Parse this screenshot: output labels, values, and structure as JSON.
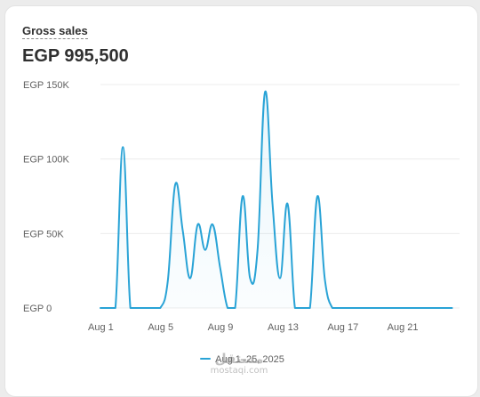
{
  "card": {
    "title": "Gross sales",
    "total": "EGP 995,500"
  },
  "legend": {
    "label": "Aug 1–25, 2025",
    "color": "#29a3d6"
  },
  "watermark": {
    "logo": "مستقل",
    "text": "mostaqi.com"
  },
  "chart_data": {
    "type": "line",
    "title": "",
    "xlabel": "",
    "ylabel": "",
    "ylim": [
      0,
      150000
    ],
    "y_ticks": [
      {
        "value": 0,
        "label": "EGP 0"
      },
      {
        "value": 50000,
        "label": "EGP 50K"
      },
      {
        "value": 100000,
        "label": "EGP 100K"
      },
      {
        "value": 150000,
        "label": "EGP 150K"
      }
    ],
    "x_ticks": [
      {
        "x": 1,
        "label": "Aug 1"
      },
      {
        "x": 5,
        "label": "Aug 5"
      },
      {
        "x": 9,
        "label": "Aug 9"
      },
      {
        "x": 13,
        "label": "Aug 13"
      },
      {
        "x": 17,
        "label": "Aug 17"
      },
      {
        "x": 21,
        "label": "Aug 21"
      }
    ],
    "grid": true,
    "legend_position": "bottom",
    "series": [
      {
        "name": "Aug 1–25, 2025",
        "color": "#29a3d6",
        "x": [
          1,
          1.5,
          2,
          2.5,
          3,
          3.5,
          4,
          4.5,
          5,
          5.5,
          6,
          6.5,
          7,
          7.5,
          8,
          8.5,
          9,
          9.5,
          10,
          10.5,
          11,
          11.5,
          12,
          12.5,
          13,
          13.5,
          14,
          14.5,
          15,
          15.5,
          16,
          16.5,
          17,
          17.5,
          18,
          18.5,
          19,
          19.5,
          20,
          20.5,
          21,
          21.5,
          22,
          22.5,
          23,
          23.5,
          24,
          24.5
        ],
        "values": [
          0,
          0,
          0,
          108000,
          0,
          0,
          0,
          0,
          0,
          18000,
          83000,
          52000,
          20000,
          56000,
          39000,
          56000,
          27000,
          0,
          0,
          75000,
          20000,
          39000,
          145000,
          70000,
          20000,
          70000,
          0,
          0,
          0,
          75000,
          19000,
          0,
          0,
          0,
          0,
          0,
          0,
          0,
          0,
          0,
          0,
          0,
          0,
          0,
          0,
          0,
          0,
          0
        ]
      }
    ]
  }
}
